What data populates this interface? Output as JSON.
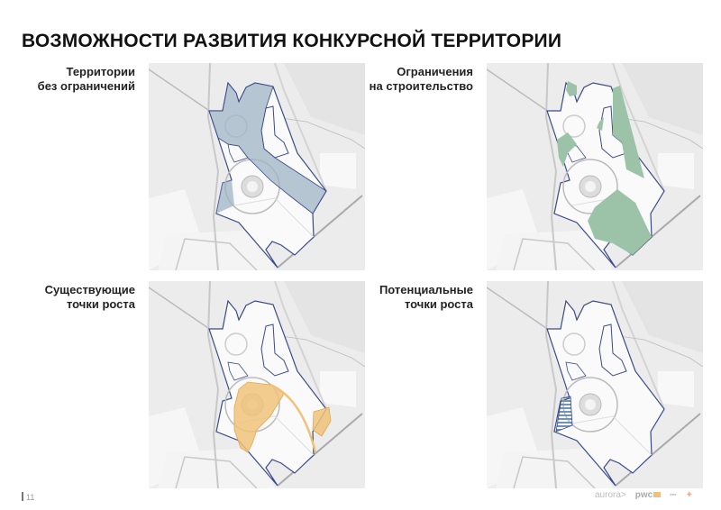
{
  "title": "ВОЗМОЖНОСТИ РАЗВИТИЯ КОНКУРСНОЙ ТЕРРИТОРИИ",
  "panels": [
    {
      "label_line1": "Территории",
      "label_line2": "без ограничений",
      "overlay": "unrestricted",
      "color": "#9fb3c4"
    },
    {
      "label_line1": "Ограничения",
      "label_line2": "на строительство",
      "overlay": "restrictions",
      "color": "#9cc3a8"
    },
    {
      "label_line1": "Существующие",
      "label_line2": "точки роста",
      "overlay": "existing-growth",
      "color": "#f0c27a"
    },
    {
      "label_line1": "Потенциальные",
      "label_line2": "точки роста",
      "overlay": "potential-growth",
      "color": "#6f93b5"
    }
  ],
  "footer": {
    "page_number": "11",
    "logos": [
      "aurora",
      "pwc"
    ]
  },
  "colors": {
    "boundary": "#3a4a8a",
    "map_bg": "#ececec"
  }
}
